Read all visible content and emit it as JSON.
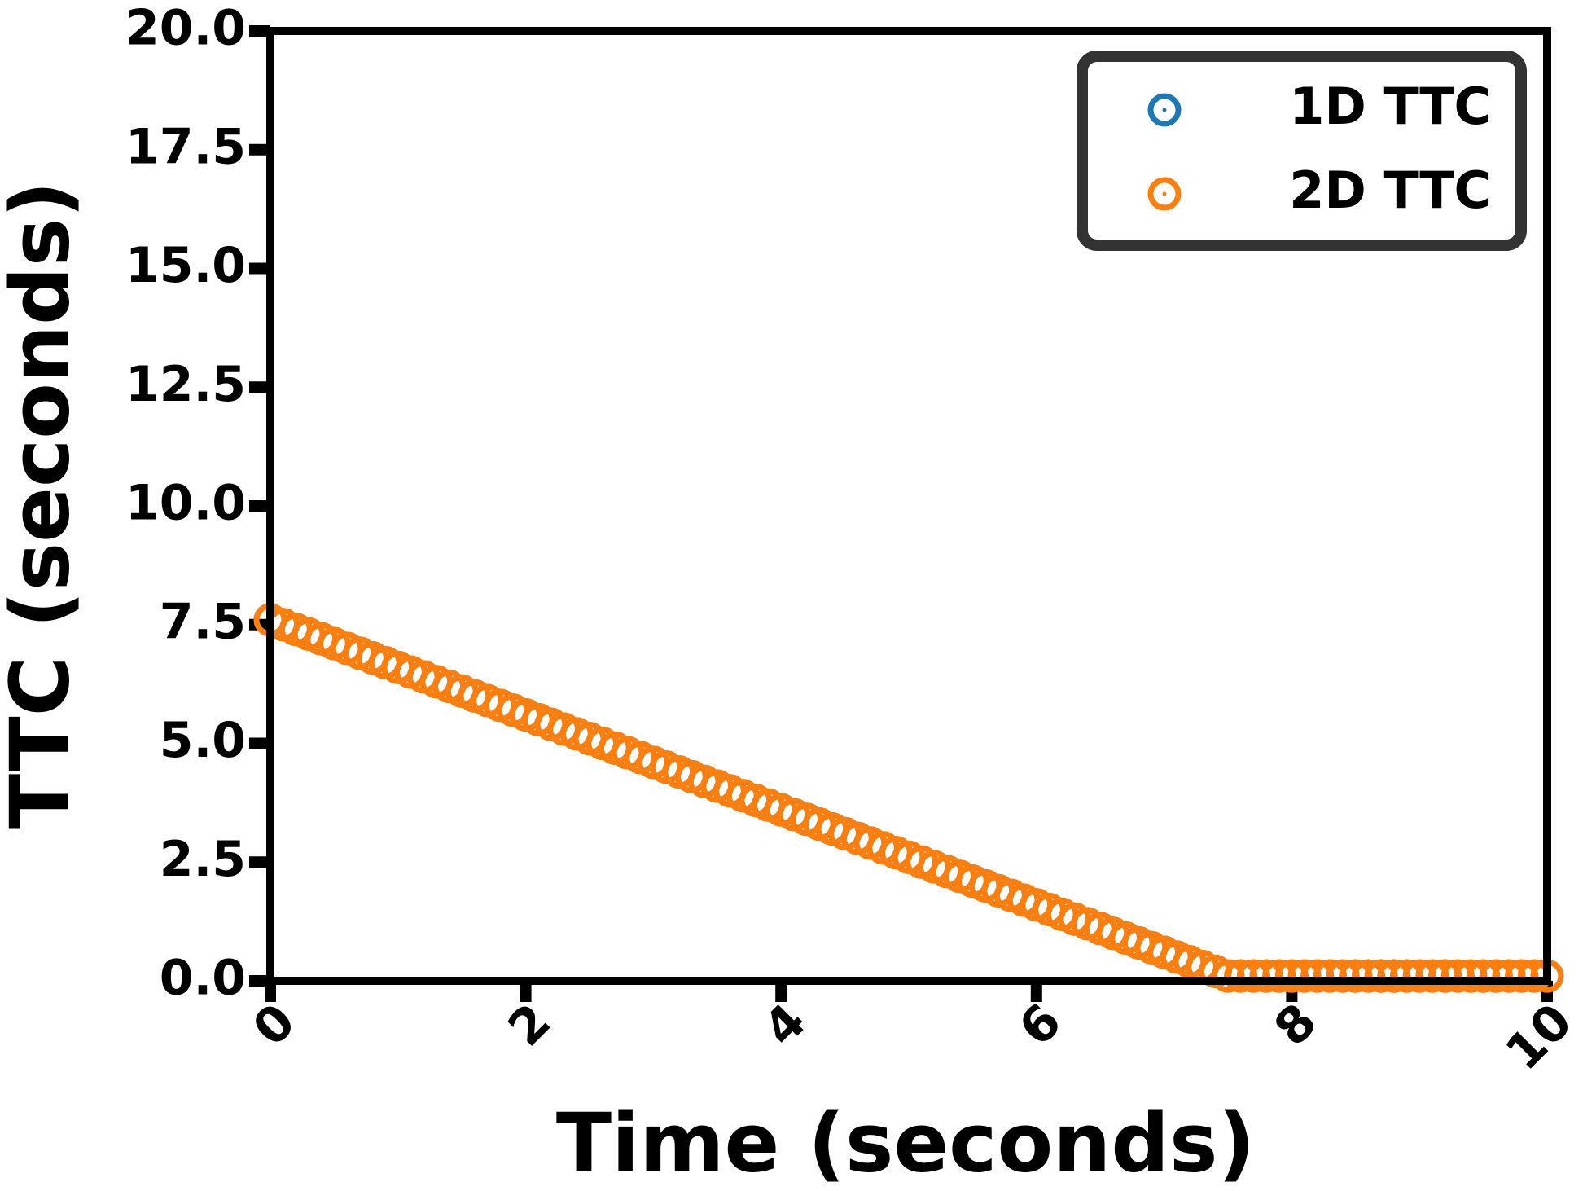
{
  "chart_data": {
    "type": "scatter",
    "xlabel": "Time (seconds)",
    "ylabel": "TTC (seconds)",
    "x": [
      0,
      0.1,
      0.2,
      0.3,
      0.4,
      0.5,
      0.6,
      0.7,
      0.8,
      0.9,
      1,
      1.1,
      1.2,
      1.3,
      1.4,
      1.5,
      1.6,
      1.7,
      1.8,
      1.9,
      2,
      2.1,
      2.2,
      2.3,
      2.4,
      2.5,
      2.6,
      2.7,
      2.8,
      2.9,
      3,
      3.1,
      3.2,
      3.3,
      3.4,
      3.5,
      3.6,
      3.7,
      3.8,
      3.9,
      4,
      4.1,
      4.2,
      4.3,
      4.4,
      4.5,
      4.6,
      4.7,
      4.8,
      4.9,
      5,
      5.1,
      5.2,
      5.3,
      5.4,
      5.5,
      5.6,
      5.7,
      5.8,
      5.9,
      6,
      6.1,
      6.2,
      6.3,
      6.4,
      6.5,
      6.6,
      6.7,
      6.8,
      6.9,
      7,
      7.1,
      7.2,
      7.3,
      7.4,
      7.5,
      7.6,
      7.7,
      7.8,
      7.9,
      8,
      8.1,
      8.2,
      8.3,
      8.4,
      8.5,
      8.6,
      8.7,
      8.8,
      8.9,
      9,
      9.1,
      9.2,
      9.3,
      9.4,
      9.5,
      9.6,
      9.7,
      9.8,
      9.9,
      10
    ],
    "series": [
      {
        "name": "1D TTC",
        "color": "#1f77b4",
        "values": [
          7.6,
          7.5,
          7.4,
          7.3,
          7.2,
          7.1,
          7,
          6.9,
          6.8,
          6.7,
          6.6,
          6.5,
          6.4,
          6.3,
          6.2,
          6.1,
          6,
          5.9,
          5.8,
          5.7,
          5.6,
          5.5,
          5.4,
          5.3,
          5.2,
          5.1,
          5,
          4.9,
          4.8,
          4.7,
          4.6,
          4.5,
          4.4,
          4.3,
          4.2,
          4.1,
          4,
          3.9,
          3.8,
          3.7,
          3.6,
          3.5,
          3.4,
          3.3,
          3.2,
          3.1,
          3,
          2.9,
          2.8,
          2.7,
          2.6,
          2.5,
          2.4,
          2.3,
          2.2,
          2.1,
          2,
          1.9,
          1.8,
          1.7,
          1.6,
          1.5,
          1.4,
          1.3,
          1.2,
          1.1,
          1,
          0.9,
          0.8,
          0.7,
          0.6,
          0.5,
          0.4,
          0.3,
          0.2,
          0.1,
          0.1,
          0.1,
          0.1,
          0.1,
          0.1,
          0.1,
          0.1,
          0.1,
          0.1,
          0.1,
          0.1,
          0.1,
          0.1,
          0.1,
          0.1,
          0.1,
          0.1,
          0.1,
          0.1,
          0.1,
          0.1,
          0.1,
          0.1,
          0.1,
          0.1
        ]
      },
      {
        "name": "2D TTC",
        "color": "#ff7f0e",
        "values": [
          7.6,
          7.5,
          7.4,
          7.3,
          7.2,
          7.1,
          7,
          6.9,
          6.8,
          6.7,
          6.6,
          6.5,
          6.4,
          6.3,
          6.2,
          6.1,
          6,
          5.9,
          5.8,
          5.7,
          5.6,
          5.5,
          5.4,
          5.3,
          5.2,
          5.1,
          5,
          4.9,
          4.8,
          4.7,
          4.6,
          4.5,
          4.4,
          4.3,
          4.2,
          4.1,
          4,
          3.9,
          3.8,
          3.7,
          3.6,
          3.5,
          3.4,
          3.3,
          3.2,
          3.1,
          3,
          2.9,
          2.8,
          2.7,
          2.6,
          2.5,
          2.4,
          2.3,
          2.2,
          2.1,
          2,
          1.9,
          1.8,
          1.7,
          1.6,
          1.5,
          1.4,
          1.3,
          1.2,
          1.1,
          1,
          0.9,
          0.8,
          0.7,
          0.6,
          0.5,
          0.4,
          0.3,
          0.2,
          0.1,
          0.1,
          0.1,
          0.1,
          0.1,
          0.1,
          0.1,
          0.1,
          0.1,
          0.1,
          0.1,
          0.1,
          0.1,
          0.1,
          0.1,
          0.1,
          0.1,
          0.1,
          0.1,
          0.1,
          0.1,
          0.1,
          0.1,
          0.1,
          0.1,
          0.1
        ]
      }
    ],
    "xlim": [
      0,
      10
    ],
    "xticks": [
      0,
      2,
      4,
      6,
      8,
      10
    ],
    "ylim": [
      0,
      20
    ],
    "yticks": [
      {
        "value": 0,
        "label": "0.0"
      },
      {
        "value": 2.5,
        "label": "2.5"
      },
      {
        "value": 5,
        "label": "5.0"
      },
      {
        "value": 7.5,
        "label": "7.5"
      },
      {
        "value": 10,
        "label": "10.0"
      },
      {
        "value": 12.5,
        "label": "12.5"
      },
      {
        "value": 15,
        "label": "15.0"
      },
      {
        "value": 17.5,
        "label": "17.5"
      },
      {
        "value": 20,
        "label": "20.0"
      }
    ],
    "grid": false,
    "legend": "upper right"
  }
}
